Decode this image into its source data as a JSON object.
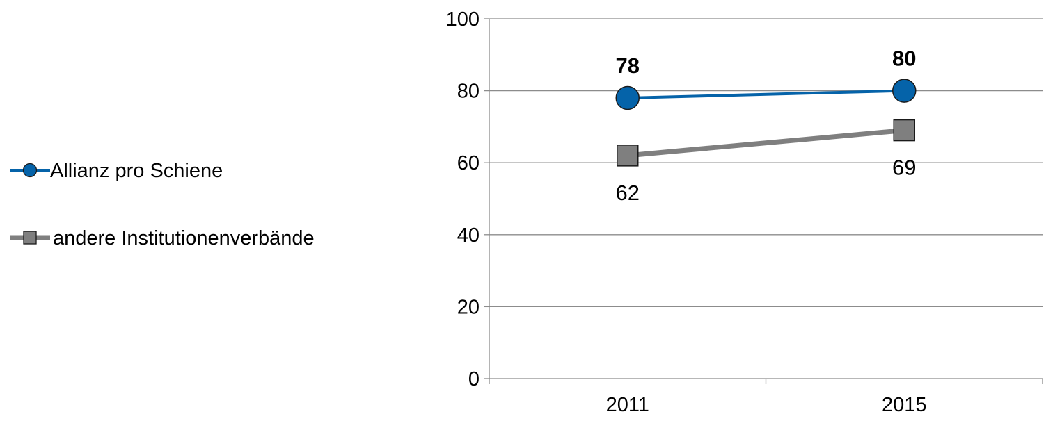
{
  "chart_data": {
    "type": "line",
    "title": "",
    "xlabel": "",
    "ylabel": "",
    "categories": [
      "2011",
      "2015"
    ],
    "ylim": [
      0,
      100
    ],
    "yticks": [
      0,
      20,
      40,
      60,
      80,
      100
    ],
    "grid": true,
    "legend_position": "left",
    "series": [
      {
        "name": "Allianz pro Schiene",
        "values": [
          78,
          80
        ],
        "color": "#0563A9",
        "marker": "circle",
        "label_position": "above",
        "label_bold": true
      },
      {
        "name": "andere Institutionenverbände",
        "values": [
          62,
          69
        ],
        "color": "#7F7F7F",
        "marker": "square",
        "label_position": "below",
        "label_bold": false
      }
    ]
  }
}
